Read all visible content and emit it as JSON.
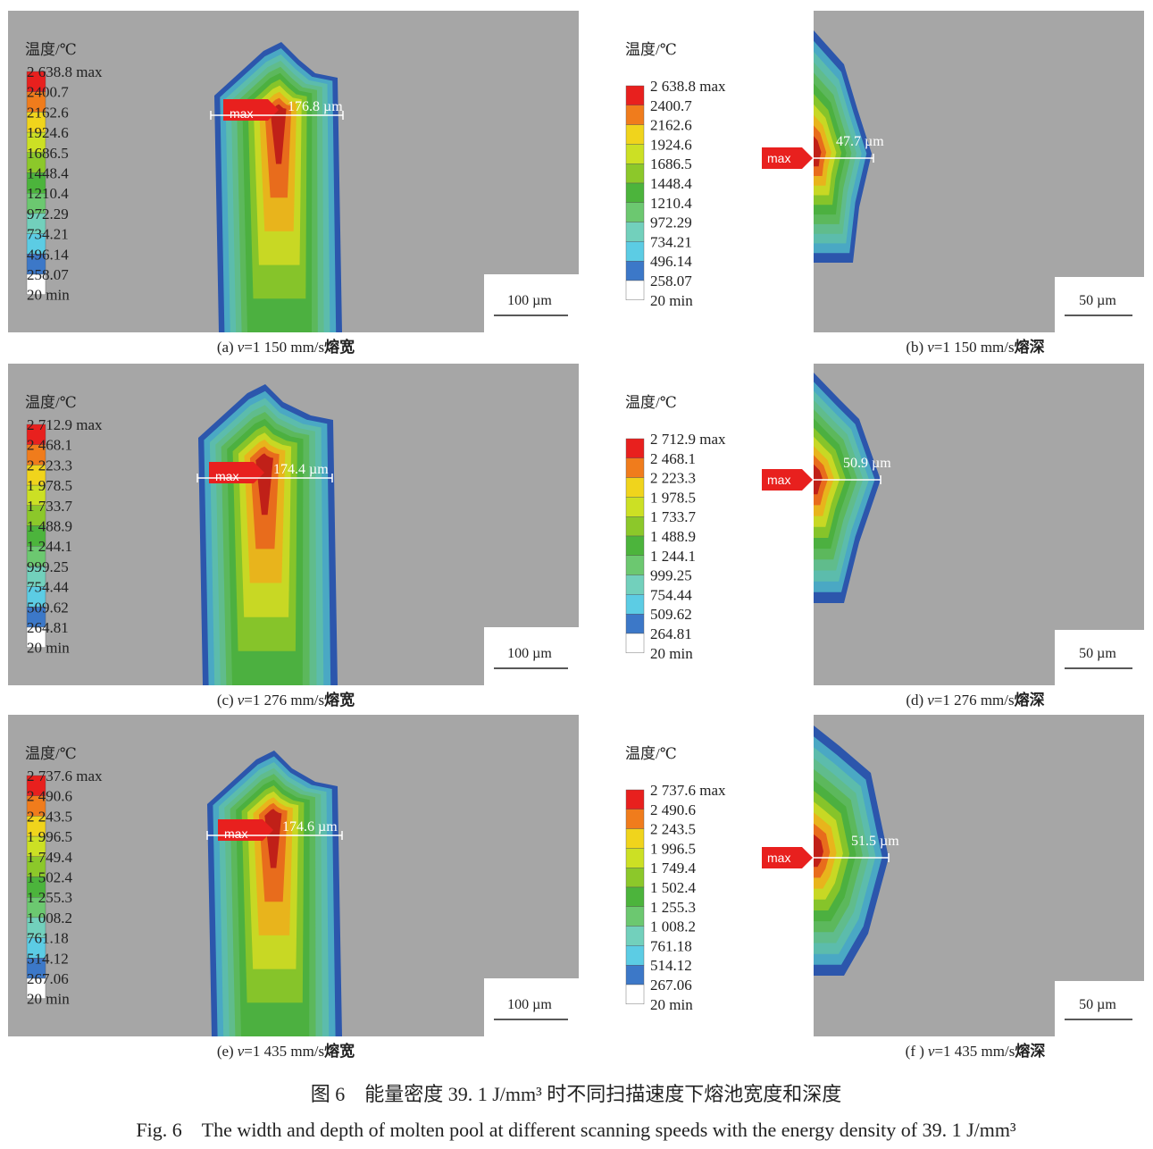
{
  "colors": {
    "background": "#a6a6a6",
    "legend_swatches": [
      "#e8201e",
      "#f07c1c",
      "#f0d41c",
      "#cce024",
      "#8cc82a",
      "#4cb43c",
      "#6cc870",
      "#72d0bc",
      "#5ccce4",
      "#3c78c8",
      "#ffffff"
    ],
    "contour_bands": [
      "#2c56ac",
      "#4aa8c4",
      "#5cbcac",
      "#60bc8c",
      "#5cb85c",
      "#4cb040",
      "#86c42a",
      "#c8d824",
      "#e8b41c",
      "#e86c1c",
      "#c02018"
    ],
    "max_marker": "#e8201e"
  },
  "panels": [
    {
      "id": "a",
      "kind": "width",
      "legend_title": "温度/℃",
      "legend_values": [
        "2 638.8 max",
        "2400.7",
        "2162.6",
        "1924.6",
        "1686.5",
        "1448.4",
        "1210.4",
        "972.29",
        "734.21",
        "496.14",
        "258.07",
        "20 min"
      ],
      "max_label": "max",
      "measurement": "176.8 µm",
      "scale_bar": "100 µm",
      "caption": {
        "label": "(a)",
        "var": "v",
        "speed": "=1 150 mm/s",
        "type": "熔宽"
      }
    },
    {
      "id": "b",
      "kind": "depth",
      "legend_title": "温度/℃",
      "legend_values": [
        "2 638.8 max",
        "2400.7",
        "2162.6",
        "1924.6",
        "1686.5",
        "1448.4",
        "1210.4",
        "972.29",
        "734.21",
        "496.14",
        "258.07",
        "20 min"
      ],
      "max_label": "max",
      "measurement": "47.7 µm",
      "scale_bar": "50 µm",
      "caption": {
        "label": "(b)",
        "var": "v",
        "speed": "=1 150 mm/s",
        "type": "熔深"
      }
    },
    {
      "id": "c",
      "kind": "width",
      "legend_title": "温度/℃",
      "legend_values": [
        "2 712.9 max",
        "2 468.1",
        "2 223.3",
        "1 978.5",
        "1 733.7",
        "1 488.9",
        "1 244.1",
        "999.25",
        "754.44",
        "509.62",
        "264.81",
        "20 min"
      ],
      "max_label": "max",
      "measurement": "174.4 µm",
      "scale_bar": "100 µm",
      "caption": {
        "label": "(c)",
        "var": "v",
        "speed": "=1 276 mm/s",
        "type": "熔宽"
      }
    },
    {
      "id": "d",
      "kind": "depth",
      "legend_title": "温度/℃",
      "legend_values": [
        "2 712.9 max",
        "2 468.1",
        "2 223.3",
        "1 978.5",
        "1 733.7",
        "1 488.9",
        "1 244.1",
        "999.25",
        "754.44",
        "509.62",
        "264.81",
        "20 min"
      ],
      "max_label": "max",
      "measurement": "50.9 µm",
      "scale_bar": "50 µm",
      "caption": {
        "label": "(d)",
        "var": "v",
        "speed": "=1 276 mm/s",
        "type": "熔深"
      }
    },
    {
      "id": "e",
      "kind": "width",
      "legend_title": "温度/℃",
      "legend_values": [
        "2 737.6 max",
        "2 490.6",
        "2 243.5",
        "1 996.5",
        "1 749.4",
        "1 502.4",
        "1 255.3",
        "1 008.2",
        "761.18",
        "514.12",
        "267.06",
        "20 min"
      ],
      "max_label": "max",
      "measurement": "174.6 µm",
      "scale_bar": "100 µm",
      "caption": {
        "label": "(e)",
        "var": "v",
        "speed": "=1 435 mm/s",
        "type": "熔宽"
      }
    },
    {
      "id": "f",
      "kind": "depth",
      "legend_title": "温度/℃",
      "legend_values": [
        "2 737.6 max",
        "2 490.6",
        "2 243.5",
        "1 996.5",
        "1 749.4",
        "1 502.4",
        "1 255.3",
        "1 008.2",
        "761.18",
        "514.12",
        "267.06",
        "20 min"
      ],
      "max_label": "max",
      "measurement": "51.5 µm",
      "scale_bar": "50 µm",
      "caption": {
        "label": "(f )",
        "var": "v",
        "speed": "=1 435 mm/s",
        "type": "熔深"
      }
    }
  ],
  "figure_caption": {
    "zh": "图 6　能量密度 39. 1 J/mm³ 时不同扫描速度下熔池宽度和深度",
    "en": "Fig. 6　The width and depth of molten pool at different scanning speeds with the energy density of 39. 1 J/mm³"
  }
}
